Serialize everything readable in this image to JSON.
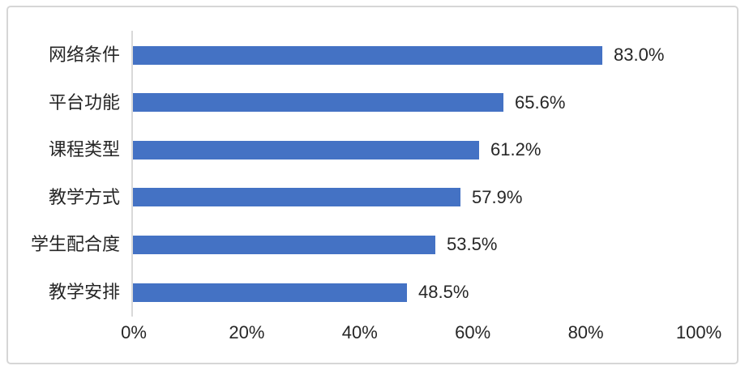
{
  "chart_data": {
    "type": "bar",
    "orientation": "horizontal",
    "title": "",
    "categories": [
      "网络条件",
      "平台功能",
      "课程类型",
      "教学方式",
      "学生配合度",
      "教学安排"
    ],
    "values": [
      83.0,
      65.6,
      61.2,
      57.9,
      53.5,
      48.5
    ],
    "value_labels": [
      "83.0%",
      "65.6%",
      "61.2%",
      "57.9%",
      "53.5%",
      "48.5%"
    ],
    "x_axis": {
      "tick_labels": [
        "0%",
        "20%",
        "40%",
        "60%",
        "80%",
        "100%"
      ],
      "tick_values": [
        0,
        20,
        40,
        60,
        80,
        100
      ],
      "range": [
        0,
        100
      ]
    },
    "grid": "off",
    "legend": "none",
    "colors": {
      "bar": "#4472C4",
      "axis_line": "#D9D9D9",
      "frame_border": "#D6D6D6",
      "text": "#262626",
      "background": "#FFFFFF"
    }
  }
}
